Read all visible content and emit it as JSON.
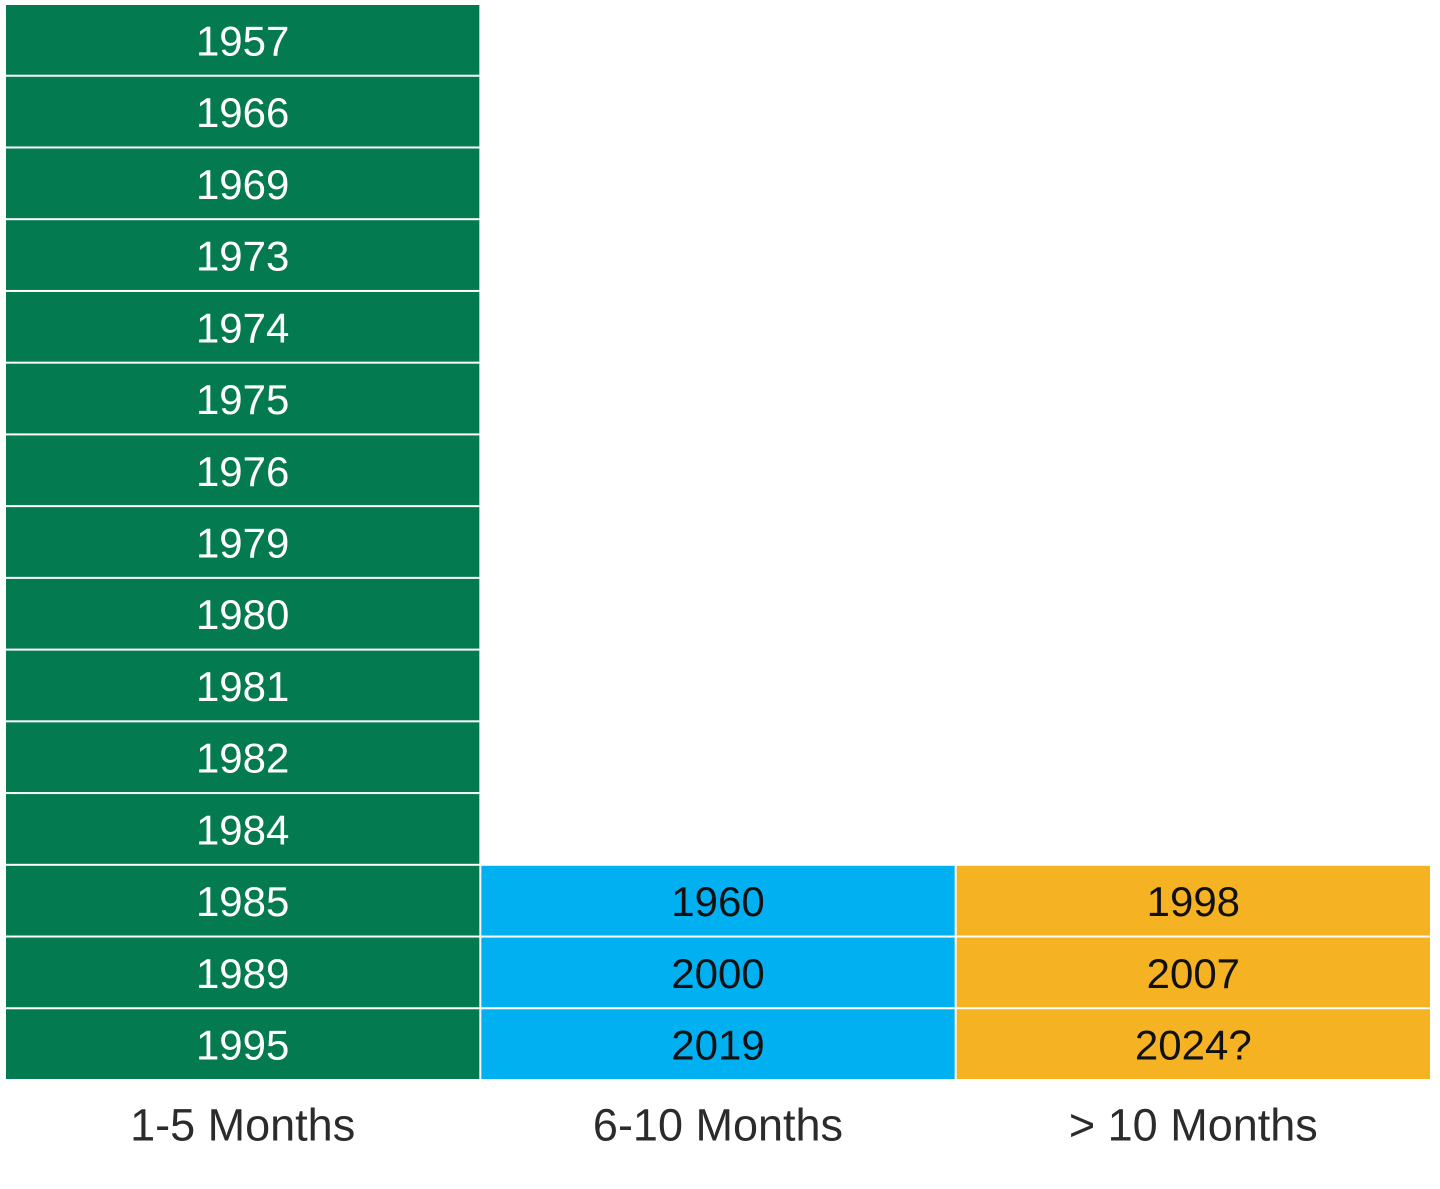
{
  "columns": [
    {
      "label": "1-5 Months",
      "color": "#037a4f",
      "text_color": "#ffffff",
      "items": [
        "1957",
        "1966",
        "1969",
        "1973",
        "1974",
        "1975",
        "1976",
        "1979",
        "1980",
        "1981",
        "1982",
        "1984",
        "1985",
        "1989",
        "1995"
      ]
    },
    {
      "label": "6-10 Months",
      "color": "#00b0f0",
      "text_color": "#111111",
      "items": [
        "1960",
        "2000",
        "2019"
      ]
    },
    {
      "label": "> 10 Months",
      "color": "#f5b223",
      "text_color": "#111111",
      "items": [
        "1998",
        "2007",
        "2024?"
      ]
    }
  ]
}
